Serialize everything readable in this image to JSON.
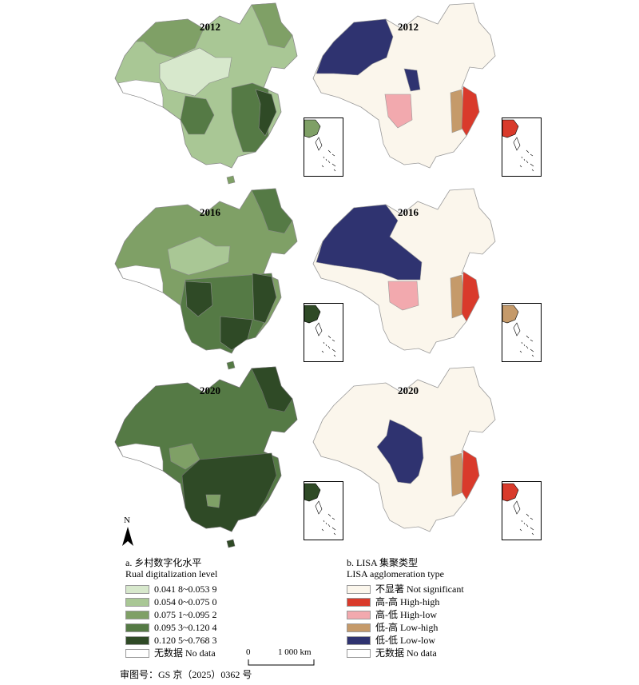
{
  "years": [
    "2012",
    "2016",
    "2020"
  ],
  "legend_a": {
    "title_cn": "a. 乡村数字化水平",
    "title_en": "Rual digitalization level",
    "classes": [
      {
        "label": "0.041 8~0.053 9",
        "color": "#d7e8cc"
      },
      {
        "label": "0.054 0~0.075 0",
        "color": "#a9c795"
      },
      {
        "label": "0.075 1~0.095 2",
        "color": "#7fa066"
      },
      {
        "label": "0.095 3~0.120 4",
        "color": "#557a45"
      },
      {
        "label": "0.120 5~0.768 3",
        "color": "#2f4a26"
      },
      {
        "label": "无数据 No data",
        "color": "#ffffff"
      }
    ]
  },
  "legend_b": {
    "title_cn": "b. LISA 集聚类型",
    "title_en": "LISA agglomeration type",
    "classes": [
      {
        "label": "不显著 Not significant",
        "color": "#fbf6ec"
      },
      {
        "label": "高-高 High-high",
        "color": "#d93a2b"
      },
      {
        "label": "高-低 High-low",
        "color": "#f2a9ae"
      },
      {
        "label": "低-高 Low-high",
        "color": "#c59a6a"
      },
      {
        "label": "低-低 Low-low",
        "color": "#2f3370"
      },
      {
        "label": "无数据 No data",
        "color": "#ffffff"
      }
    ]
  },
  "north_label": "N",
  "scale": {
    "start": "0",
    "end": "1 000 km"
  },
  "approval_number": "审图号：GS 京（2025）0362 号"
}
